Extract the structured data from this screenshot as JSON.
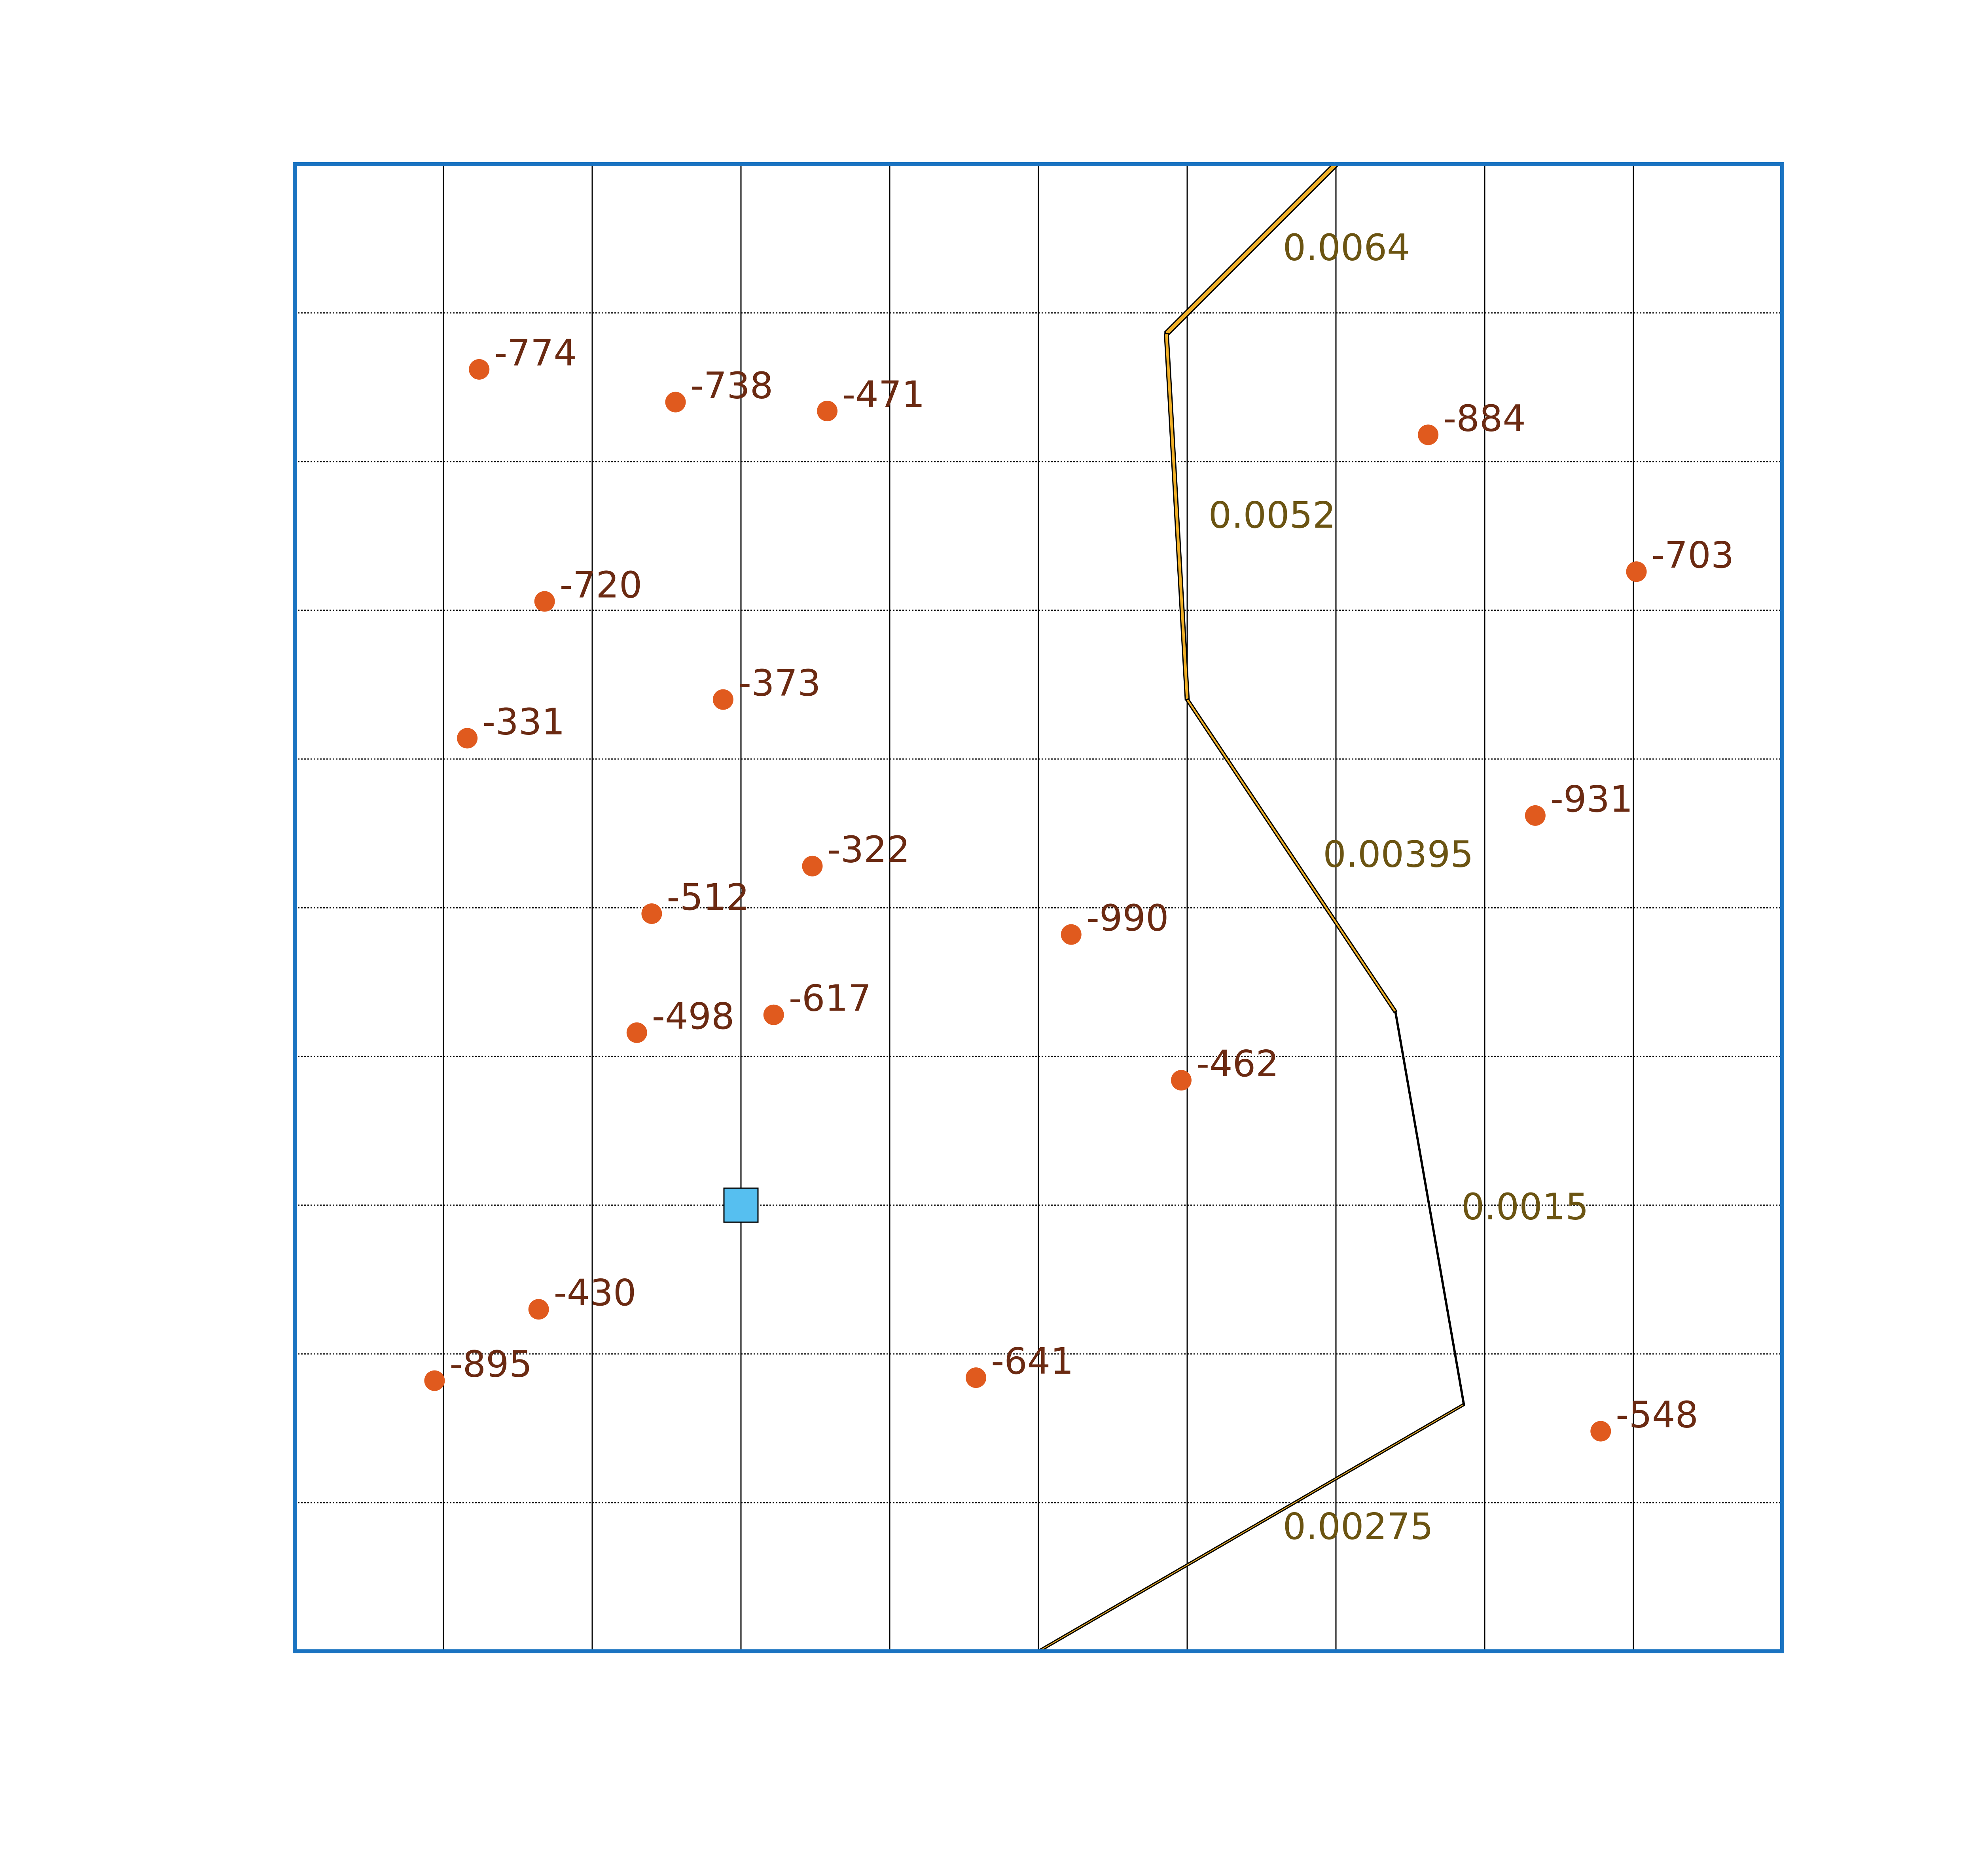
{
  "colors": {
    "frame": "#1a73c1",
    "grid": "#000000",
    "point": "#e05a1e",
    "point_label": "#6b2a12",
    "path_fill": "#f0b028",
    "path_label": "#6b5412",
    "marker": "#56bff0"
  },
  "chart_data": {
    "type": "scatter",
    "grid": "on",
    "xlim": [
      0,
      10
    ],
    "ylim": [
      0,
      10
    ],
    "points": [
      {
        "x": 1.24,
        "y": 8.62,
        "label": "-774"
      },
      {
        "x": 2.56,
        "y": 8.4,
        "label": "-738"
      },
      {
        "x": 3.58,
        "y": 8.34,
        "label": "-471"
      },
      {
        "x": 7.62,
        "y": 8.18,
        "label": "-884"
      },
      {
        "x": 9.02,
        "y": 7.26,
        "label": "-703"
      },
      {
        "x": 1.68,
        "y": 7.06,
        "label": "-720"
      },
      {
        "x": 2.88,
        "y": 6.4,
        "label": "-373"
      },
      {
        "x": 1.16,
        "y": 6.14,
        "label": "-331"
      },
      {
        "x": 8.34,
        "y": 5.62,
        "label": "-931"
      },
      {
        "x": 3.48,
        "y": 5.28,
        "label": "-322"
      },
      {
        "x": 2.4,
        "y": 4.96,
        "label": "-512"
      },
      {
        "x": 5.22,
        "y": 4.82,
        "label": "-990"
      },
      {
        "x": 3.22,
        "y": 4.28,
        "label": "-617"
      },
      {
        "x": 2.3,
        "y": 4.16,
        "label": "-498"
      },
      {
        "x": 5.96,
        "y": 3.84,
        "label": "-462"
      },
      {
        "x": 1.64,
        "y": 2.3,
        "label": "-430"
      },
      {
        "x": 0.94,
        "y": 1.82,
        "label": "-895"
      },
      {
        "x": 4.58,
        "y": 1.84,
        "label": "-641"
      },
      {
        "x": 8.78,
        "y": 1.48,
        "label": "-548"
      }
    ],
    "marker": {
      "x": 3.0,
      "y": 3.0
    },
    "path": {
      "vertices": [
        {
          "x": 7.0,
          "y": 10.0
        },
        {
          "x": 5.86,
          "y": 8.86
        },
        {
          "x": 6.0,
          "y": 6.4
        },
        {
          "x": 7.4,
          "y": 4.3
        },
        {
          "x": 7.86,
          "y": 1.66
        },
        {
          "x": 5.0,
          "y": 0.0
        }
      ],
      "segments": [
        {
          "label": "0.0064",
          "width": 0.0064
        },
        {
          "label": "0.0052",
          "width": 0.0052
        },
        {
          "label": "0.00395",
          "width": 0.00395
        },
        {
          "label": "0.0015",
          "width": 0.0015
        },
        {
          "label": "0.00275",
          "width": 0.00275
        }
      ]
    }
  }
}
